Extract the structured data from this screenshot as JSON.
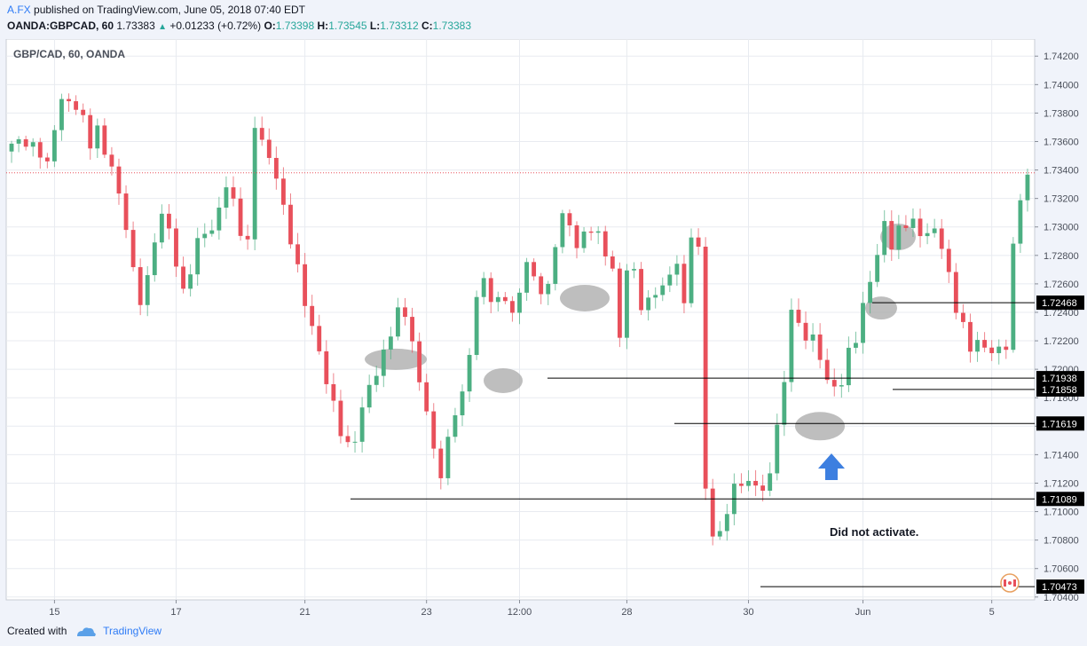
{
  "header": {
    "author": "A.FX",
    "published_text": "published on TradingView.com, June 05, 2018 07:40 EDT",
    "symbol": "OANDA:GBPCAD, 60",
    "last": "1.73383",
    "change": "+0.01233 (+0.72%)",
    "o_label": "O:",
    "o_value": "1.73398",
    "h_label": "H:",
    "h_value": "1.73545",
    "l_label": "L:",
    "l_value": "1.73312",
    "c_label": "C:",
    "c_value": "1.73383"
  },
  "chart_title": "GBP/CAD, 60, OANDA",
  "annotation": "Did not activate.",
  "footer": {
    "created_with": "Created with",
    "brand": "TradingView"
  },
  "colors": {
    "up": "#4caf82",
    "down": "#e8505b",
    "background": "#ffffff",
    "grid": "#e8ebf0",
    "line": "#000000",
    "arrow": "#3d7fe0",
    "zone": "#a8a8a8"
  },
  "chart_data": {
    "type": "candlestick",
    "title": "GBP/CAD, 60, OANDA",
    "ylim": [
      1.7038,
      1.7432
    ],
    "y_ticks": [
      "1.74200",
      "1.74000",
      "1.73800",
      "1.73600",
      "1.73400",
      "1.73200",
      "1.73000",
      "1.72800",
      "1.72600",
      "1.72400",
      "1.72200",
      "1.72000",
      "1.71800",
      "1.71600",
      "1.71400",
      "1.71200",
      "1.71000",
      "1.70800",
      "1.70600",
      "1.70400"
    ],
    "x_labels": [
      "15",
      "17",
      "21",
      "23",
      "12:00",
      "28",
      "30",
      "Jun",
      "5"
    ],
    "current_price": 1.7338,
    "horizontal_levels": [
      "1.72468",
      "1.71938",
      "1.71858",
      "1.71619",
      "1.71089",
      "1.70473"
    ],
    "close_path": [
      [
        0,
        1.7356
      ],
      [
        2,
        1.7362
      ],
      [
        4,
        1.7352
      ],
      [
        5,
        1.734
      ],
      [
        6,
        1.737
      ],
      [
        7,
        1.7392
      ],
      [
        8,
        1.7388
      ],
      [
        9,
        1.7384
      ],
      [
        10,
        1.7372
      ],
      [
        11,
        1.736
      ],
      [
        12,
        1.737
      ],
      [
        13,
        1.7354
      ],
      [
        14,
        1.734
      ],
      [
        15,
        1.732
      ],
      [
        16,
        1.7302
      ],
      [
        17,
        1.727
      ],
      [
        18,
        1.725
      ],
      [
        19,
        1.726
      ],
      [
        20,
        1.729
      ],
      [
        21,
        1.731
      ],
      [
        22,
        1.73
      ],
      [
        23,
        1.7275
      ],
      [
        24,
        1.725
      ],
      [
        25,
        1.727
      ],
      [
        26,
        1.729
      ],
      [
        27,
        1.73
      ],
      [
        28,
        1.7296
      ],
      [
        29,
        1.731
      ],
      [
        30,
        1.733
      ],
      [
        31,
        1.7318
      ],
      [
        32,
        1.73
      ],
      [
        33,
        1.7286
      ],
      [
        34,
        1.737
      ],
      [
        35,
        1.736
      ],
      [
        36,
        1.735
      ],
      [
        37,
        1.7338
      ],
      [
        38,
        1.731
      ],
      [
        39,
        1.729
      ],
      [
        40,
        1.727
      ],
      [
        41,
        1.725
      ],
      [
        42,
        1.723
      ],
      [
        43,
        1.721
      ],
      [
        44,
        1.719
      ],
      [
        45,
        1.7175
      ],
      [
        46,
        1.716
      ],
      [
        47,
        1.7145
      ],
      [
        48,
        1.715
      ],
      [
        49,
        1.717
      ],
      [
        50,
        1.719
      ],
      [
        51,
        1.72
      ],
      [
        52,
        1.721
      ],
      [
        53,
        1.7225
      ],
      [
        54,
        1.7238
      ],
      [
        55,
        1.7242
      ],
      [
        56,
        1.722
      ],
      [
        57,
        1.719
      ],
      [
        58,
        1.717
      ],
      [
        59,
        1.714
      ],
      [
        60,
        1.713
      ],
      [
        61,
        1.715
      ],
      [
        62,
        1.717
      ],
      [
        63,
        1.718
      ],
      [
        64,
        1.721
      ],
      [
        65,
        1.7255
      ],
      [
        66,
        1.7262
      ],
      [
        67,
        1.725
      ],
      [
        68,
        1.7244
      ],
      [
        69,
        1.7252
      ],
      [
        70,
        1.724
      ],
      [
        71,
        1.7255
      ],
      [
        72,
        1.7275
      ],
      [
        73,
        1.726
      ],
      [
        74,
        1.7258
      ],
      [
        75,
        1.7258
      ],
      [
        76,
        1.729
      ],
      [
        77,
        1.7305
      ],
      [
        78,
        1.73
      ],
      [
        79,
        1.7288
      ],
      [
        80,
        1.7296
      ],
      [
        81,
        1.73
      ],
      [
        82,
        1.729
      ],
      [
        83,
        1.7282
      ],
      [
        84,
        1.727
      ],
      [
        85,
        1.7225
      ],
      [
        86,
        1.727
      ],
      [
        87,
        1.7265
      ],
      [
        88,
        1.7245
      ],
      [
        89,
        1.7248
      ],
      [
        90,
        1.7258
      ],
      [
        91,
        1.7255
      ],
      [
        92,
        1.7265
      ],
      [
        93,
        1.7275
      ],
      [
        94,
        1.7246
      ],
      [
        95,
        1.7298
      ],
      [
        96,
        1.728
      ],
      [
        97,
        1.7118
      ],
      [
        98,
        1.708
      ],
      [
        99,
        1.709
      ],
      [
        100,
        1.71
      ],
      [
        101,
        1.7115
      ],
      [
        102,
        1.712
      ],
      [
        103,
        1.7118
      ],
      [
        104,
        1.7125
      ],
      [
        105,
        1.7112
      ],
      [
        106,
        1.7126
      ],
      [
        107,
        1.716
      ],
      [
        108,
        1.719
      ],
      [
        109,
        1.7248
      ],
      [
        110,
        1.7228
      ],
      [
        111,
        1.7222
      ],
      [
        112,
        1.722
      ],
      [
        113,
        1.721
      ],
      [
        114,
        1.7195
      ],
      [
        115,
        1.7185
      ],
      [
        116,
        1.719
      ],
      [
        117,
        1.721
      ],
      [
        118,
        1.7225
      ],
      [
        119,
        1.7245
      ],
      [
        120,
        1.7262
      ],
      [
        121,
        1.7278
      ],
      [
        122,
        1.7302
      ],
      [
        123,
        1.729
      ],
      [
        124,
        1.7298
      ],
      [
        125,
        1.7302
      ],
      [
        126,
        1.73
      ],
      [
        127,
        1.7296
      ],
      [
        128,
        1.7298
      ],
      [
        129,
        1.7298
      ],
      [
        130,
        1.7286
      ],
      [
        131,
        1.7262
      ],
      [
        132,
        1.7245
      ],
      [
        133,
        1.7232
      ],
      [
        134,
        1.7215
      ],
      [
        135,
        1.7218
      ],
      [
        136,
        1.7212
      ],
      [
        137,
        1.7216
      ],
      [
        138,
        1.7214
      ],
      [
        139,
        1.7218
      ],
      [
        140,
        1.7282
      ],
      [
        141,
        1.732
      ],
      [
        142,
        1.7338
      ]
    ]
  }
}
